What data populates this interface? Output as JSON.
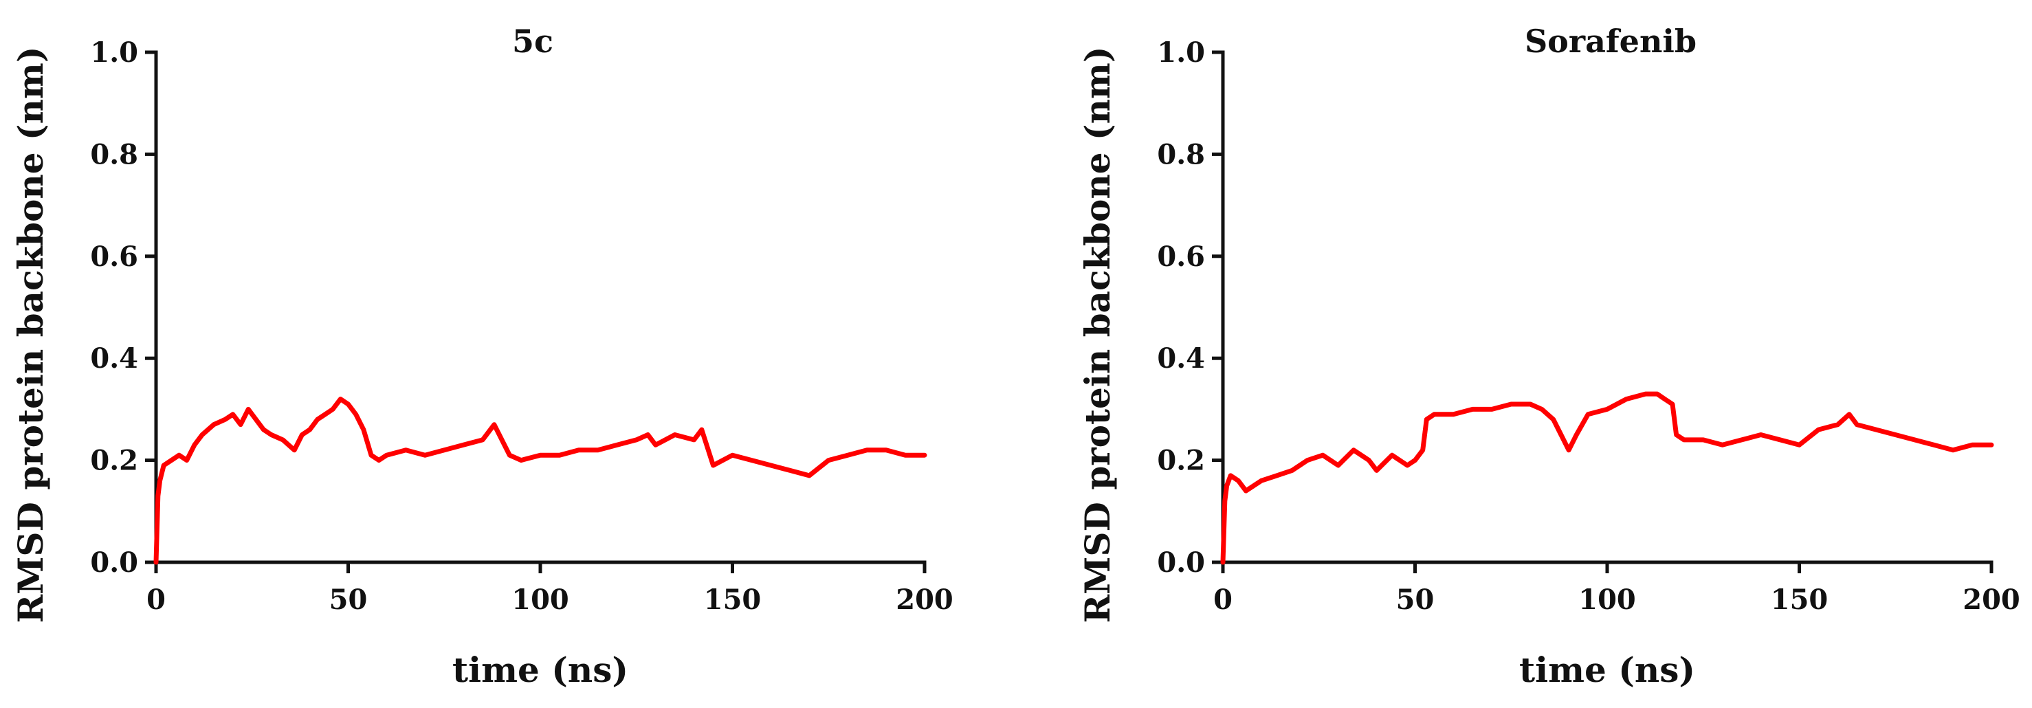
{
  "chart_data": [
    {
      "type": "line",
      "title": "5c",
      "xlabel": "time (ns)",
      "ylabel": "RMSD protein backbone (nm)",
      "xlim": [
        0,
        200
      ],
      "ylim": [
        0,
        1.0
      ],
      "xticks": [
        "0",
        "50",
        "100",
        "150",
        "200"
      ],
      "yticks": [
        "0.0",
        "0.2",
        "0.4",
        "0.6",
        "0.8",
        "1.0"
      ],
      "grid": false,
      "series": [
        {
          "color": "#ff0000",
          "x": [
            0,
            0.5,
            1,
            2,
            4,
            6,
            8,
            10,
            12,
            15,
            18,
            20,
            22,
            24,
            26,
            28,
            30,
            33,
            36,
            38,
            40,
            42,
            44,
            46,
            48,
            50,
            52,
            54,
            56,
            58,
            60,
            65,
            70,
            75,
            80,
            85,
            88,
            90,
            92,
            95,
            100,
            105,
            110,
            115,
            120,
            125,
            128,
            130,
            135,
            140,
            142,
            145,
            150,
            155,
            160,
            165,
            170,
            175,
            180,
            185,
            190,
            195,
            200
          ],
          "y": [
            0.0,
            0.13,
            0.16,
            0.19,
            0.2,
            0.21,
            0.2,
            0.23,
            0.25,
            0.27,
            0.28,
            0.29,
            0.27,
            0.3,
            0.28,
            0.26,
            0.25,
            0.24,
            0.22,
            0.25,
            0.26,
            0.28,
            0.29,
            0.3,
            0.32,
            0.31,
            0.29,
            0.26,
            0.21,
            0.2,
            0.21,
            0.22,
            0.21,
            0.22,
            0.23,
            0.24,
            0.27,
            0.24,
            0.21,
            0.2,
            0.21,
            0.21,
            0.22,
            0.22,
            0.23,
            0.24,
            0.25,
            0.23,
            0.25,
            0.24,
            0.26,
            0.19,
            0.21,
            0.2,
            0.19,
            0.18,
            0.17,
            0.2,
            0.21,
            0.22,
            0.22,
            0.21,
            0.21
          ]
        }
      ]
    },
    {
      "type": "line",
      "title": "Sorafenib",
      "xlabel": "time (ns)",
      "ylabel": "RMSD protein backbone (nm)",
      "xlim": [
        0,
        200
      ],
      "ylim": [
        0,
        1.0
      ],
      "xticks": [
        "0",
        "50",
        "100",
        "150",
        "200"
      ],
      "yticks": [
        "0.0",
        "0.2",
        "0.4",
        "0.6",
        "0.8",
        "1.0"
      ],
      "grid": false,
      "series": [
        {
          "color": "#ff0000",
          "x": [
            0,
            0.5,
            1,
            2,
            4,
            6,
            8,
            10,
            14,
            18,
            22,
            26,
            30,
            34,
            38,
            40,
            44,
            48,
            50,
            52,
            53,
            55,
            60,
            65,
            70,
            75,
            80,
            83,
            86,
            88,
            90,
            92,
            95,
            100,
            105,
            110,
            113,
            115,
            117,
            118,
            120,
            125,
            130,
            135,
            140,
            145,
            150,
            155,
            160,
            163,
            165,
            170,
            175,
            180,
            185,
            190,
            195,
            200
          ],
          "y": [
            0.0,
            0.12,
            0.15,
            0.17,
            0.16,
            0.14,
            0.15,
            0.16,
            0.17,
            0.18,
            0.2,
            0.21,
            0.19,
            0.22,
            0.2,
            0.18,
            0.21,
            0.19,
            0.2,
            0.22,
            0.28,
            0.29,
            0.29,
            0.3,
            0.3,
            0.31,
            0.31,
            0.3,
            0.28,
            0.25,
            0.22,
            0.25,
            0.29,
            0.3,
            0.32,
            0.33,
            0.33,
            0.32,
            0.31,
            0.25,
            0.24,
            0.24,
            0.23,
            0.24,
            0.25,
            0.24,
            0.23,
            0.26,
            0.27,
            0.29,
            0.27,
            0.26,
            0.25,
            0.24,
            0.23,
            0.22,
            0.23,
            0.23
          ]
        }
      ]
    }
  ]
}
